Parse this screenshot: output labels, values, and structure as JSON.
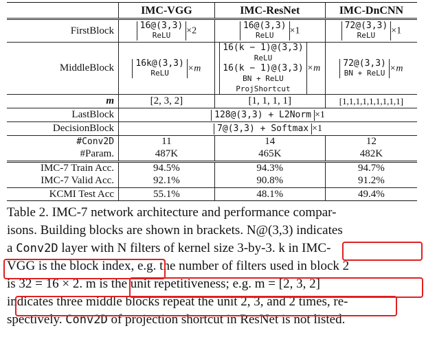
{
  "table": {
    "headers": [
      "",
      "IMC-VGG",
      "IMC-ResNet",
      "IMC-DnCNN"
    ],
    "first_block": {
      "label": "FirstBlock",
      "vgg": {
        "line1": "16@(3,3)",
        "line2": "ReLU",
        "mult": "×2"
      },
      "resnet": {
        "line1": "16@(3,3)",
        "line2": "ReLU",
        "mult": "×1"
      },
      "dncnn": {
        "line1": "72@(3,3)",
        "line2": "ReLU",
        "mult": "×1"
      }
    },
    "middle_block": {
      "label": "MiddleBlock",
      "vgg": {
        "line1": "16k@(3,3)",
        "line2": "ReLU",
        "mult": "×m"
      },
      "resnet": {
        "line1": "16(k − 1)@(3,3)",
        "line2": "ReLU",
        "line3": "16(k − 1)@(3,3)",
        "line4": "BN + ReLU",
        "line5": "ProjShortcut",
        "mult": "×m"
      },
      "dncnn": {
        "line1": "72@(3,3)",
        "line2": "BN + ReLU",
        "mult": "×m"
      }
    },
    "m_row": {
      "label": "m",
      "vgg": "[2, 3, 2]",
      "resnet": "[1, 1, 1, 1]",
      "dncnn": "[1,1,1,1,1,1,1,1,1]"
    },
    "last_block": {
      "label": "LastBlock",
      "value": "128@(3,3) + L2Norm",
      "mult": "×1"
    },
    "decision_block": {
      "label": "DecisionBlock",
      "value": "7@(3,3) + Softmax",
      "mult": "×1"
    },
    "conv2d_row": {
      "label": "#Conv2D",
      "vgg": "11",
      "resnet": "14",
      "dncnn": "12"
    },
    "param_row": {
      "label": "#Param.",
      "vgg": "487K",
      "resnet": "465K",
      "dncnn": "482K"
    },
    "train_row": {
      "label": "IMC-7 Train Acc.",
      "vgg": "94.5%",
      "resnet": "94.3%",
      "dncnn": "94.7%"
    },
    "valid_row": {
      "label": "IMC-7 Valid Acc.",
      "vgg": "92.1%",
      "resnet": "90.8%",
      "dncnn": "91.2%"
    },
    "test_row": {
      "label": "KCMI Test Acc",
      "vgg": "55.1%",
      "resnet": "48.1%",
      "dncnn": "49.4%"
    }
  },
  "caption": {
    "l1": "Table 2. IMC-7 network architecture and performance compar-",
    "l2": "isons. Building blocks are shown in brackets. N@(3,3) indicates",
    "l3a": "a ",
    "l3b": "Conv2D",
    "l3c": " layer with N filters of kernel size 3-by-3. ",
    "l3d": "k in IMC-",
    "l4a": "VGG is the block index,",
    "l4b": " e.g. the number of filters used in block 2",
    "l5a": "is 32 = 16 × 2. ",
    "l5b": "m is the unit repetitiveness; e.g. m = [2, 3, 2]",
    "l6a": "indicates three middle blocks repeat the unit 2, 3, and 2 times,",
    "l6b": " re-",
    "l7a": "spectively. ",
    "l7b": "Conv2D",
    "l7c": " of projection shortcut in ResNet is not listed."
  },
  "highlight_color": "#e02020"
}
